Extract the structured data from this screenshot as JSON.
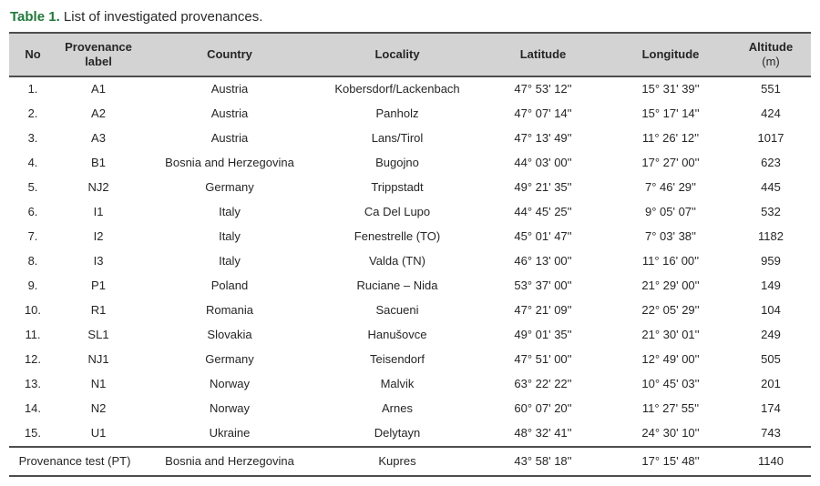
{
  "title": {
    "label": "Table 1.",
    "text": " List of investigated provenances."
  },
  "colors": {
    "caption_label_green": "#1f7a38",
    "header_background": "#d3d3d3",
    "border": "#4d4d4d",
    "text": "#262626"
  },
  "table": {
    "columns": [
      {
        "label": "No"
      },
      {
        "label": "Provenance label"
      },
      {
        "label": "Country"
      },
      {
        "label": "Locality"
      },
      {
        "label": "Latitude"
      },
      {
        "label": "Longitude"
      },
      {
        "label": "Altitude",
        "sub": "(m)"
      }
    ],
    "rows": [
      [
        "1.",
        "A1",
        "Austria",
        "Kobersdorf/Lackenbach",
        "47° 53' 12''",
        "15° 31' 39''",
        "551"
      ],
      [
        "2.",
        "A2",
        "Austria",
        "Panholz",
        "47° 07' 14''",
        "15° 17' 14''",
        "424"
      ],
      [
        "3.",
        "A3",
        "Austria",
        "Lans/Tirol",
        "47° 13' 49''",
        "11° 26' 12''",
        "1017"
      ],
      [
        "4.",
        "B1",
        "Bosnia and Herzegovina",
        "Bugojno",
        "44° 03' 00''",
        "17° 27' 00''",
        "623"
      ],
      [
        "5.",
        "NJ2",
        "Germany",
        "Trippstadt",
        "49° 21' 35''",
        "7° 46' 29''",
        "445"
      ],
      [
        "6.",
        "I1",
        "Italy",
        "Ca Del Lupo",
        "44° 45' 25''",
        "9° 05' 07''",
        "532"
      ],
      [
        "7.",
        "I2",
        "Italy",
        "Fenestrelle (TO)",
        "45° 01' 47''",
        "7° 03' 38''",
        "1182"
      ],
      [
        "8.",
        "I3",
        "Italy",
        "Valda (TN)",
        "46° 13' 00''",
        "11° 16' 00''",
        "959"
      ],
      [
        "9.",
        "P1",
        "Poland",
        "Ruciane – Nida",
        "53° 37' 00''",
        "21° 29' 00''",
        "149"
      ],
      [
        "10.",
        "R1",
        "Romania",
        "Sacueni",
        "47° 21' 09''",
        "22° 05' 29''",
        "104"
      ],
      [
        "11.",
        "SL1",
        "Slovakia",
        "Hanušovce",
        "49° 01' 35''",
        "21° 30' 01''",
        "249"
      ],
      [
        "12.",
        "NJ1",
        "Germany",
        "Teisendorf",
        "47° 51' 00''",
        "12° 49' 00''",
        "505"
      ],
      [
        "13.",
        "N1",
        "Norway",
        "Malvik",
        "63° 22' 22''",
        "10° 45' 03''",
        "201"
      ],
      [
        "14.",
        "N2",
        "Norway",
        "Arnes",
        "60° 07' 20''",
        "11° 27' 55''",
        "174"
      ],
      [
        "15.",
        "U1",
        "Ukraine",
        "Delytayn",
        "48° 32' 41''",
        "24° 30' 10''",
        "743"
      ]
    ],
    "footer_row": [
      "Provenance test (PT)",
      "Bosnia and Herzegovina",
      "Kupres",
      "43° 58' 18''",
      "17° 15' 48''",
      "1140"
    ]
  }
}
